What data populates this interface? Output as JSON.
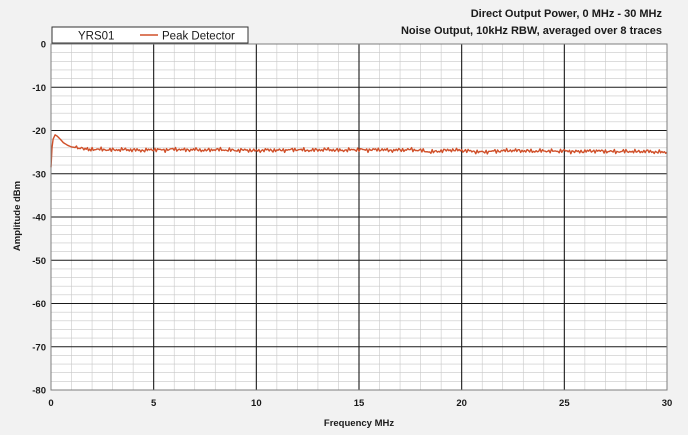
{
  "chart_data": {
    "type": "line",
    "title": "Direct Output Power, 0 MHz - 30 MHz",
    "subtitle": "Noise Output, 10kHz RBW, averaged over 8 traces",
    "xlabel": "Frequency MHz",
    "ylabel": "Amplitude dBm",
    "xlim": [
      0,
      30
    ],
    "ylim": [
      -80,
      0
    ],
    "x_ticks": [
      "0",
      "5",
      "10",
      "15",
      "20",
      "25",
      "30"
    ],
    "y_ticks": [
      "0",
      "-10",
      "-20",
      "-30",
      "-40",
      "-50",
      "-60",
      "-70",
      "-80"
    ],
    "grid": true,
    "legend": {
      "placement": "top-left",
      "header": "YRS01",
      "entries": [
        "Peak Detector"
      ]
    },
    "series": [
      {
        "name": "Peak Detector",
        "color": "#d0502a",
        "x": [
          0,
          0.05,
          0.1,
          0.2,
          0.3,
          0.45,
          0.6,
          0.8,
          1.0,
          1.3,
          1.6,
          2.0,
          2.5,
          3,
          3.5,
          4,
          4.5,
          5,
          5.5,
          6,
          6.5,
          7,
          7.5,
          8,
          8.5,
          9,
          9.5,
          10,
          10.5,
          11,
          11.5,
          12,
          12.5,
          13,
          13.5,
          14,
          14.5,
          15,
          15.5,
          16,
          16.5,
          17,
          17.5,
          18,
          18.5,
          19,
          19.5,
          20,
          20.5,
          21,
          21.5,
          22,
          22.5,
          23,
          23.5,
          24,
          24.5,
          25,
          25.5,
          26,
          26.5,
          27,
          27.5,
          28,
          28.5,
          29,
          29.5,
          30
        ],
        "y": [
          -28.5,
          -24,
          -22,
          -21,
          -21.3,
          -22,
          -22.8,
          -23.4,
          -23.8,
          -24.0,
          -24.2,
          -24.3,
          -24.4,
          -24.5,
          -24.4,
          -24.5,
          -24.6,
          -24.4,
          -24.5,
          -24.3,
          -24.5,
          -24.4,
          -24.6,
          -24.4,
          -24.5,
          -24.6,
          -24.5,
          -24.7,
          -24.5,
          -24.6,
          -24.5,
          -24.4,
          -24.6,
          -24.5,
          -24.4,
          -24.6,
          -24.5,
          -24.4,
          -24.5,
          -24.4,
          -24.6,
          -24.5,
          -24.4,
          -24.6,
          -25.0,
          -24.7,
          -24.5,
          -24.6,
          -24.8,
          -25.0,
          -24.8,
          -24.7,
          -24.6,
          -24.7,
          -24.8,
          -24.7,
          -24.8,
          -24.7,
          -24.9,
          -24.8,
          -24.7,
          -24.8,
          -24.9,
          -24.8,
          -24.9,
          -24.8,
          -25.0,
          -25.0
        ]
      }
    ]
  }
}
